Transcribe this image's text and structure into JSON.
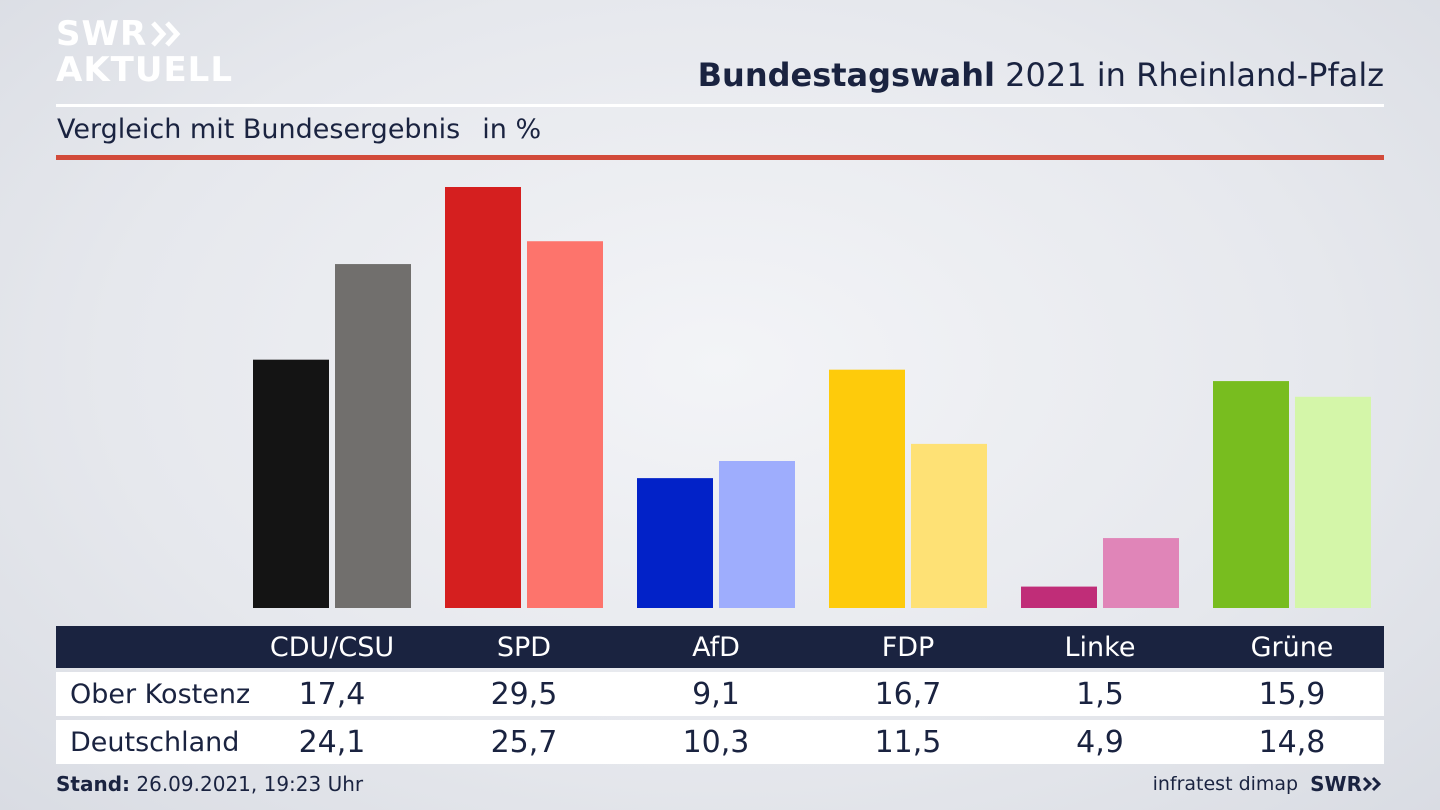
{
  "logo": {
    "line1": "SWR",
    "line2": "AKTUELL"
  },
  "header": {
    "title_bold": "Bundestagswahl",
    "title_rest": "2021 in Rheinland-Pfalz"
  },
  "subtitle": {
    "text": "Vergleich mit Bundesergebnis",
    "unit": "in %"
  },
  "table": {
    "headers": [
      "CDU/CSU",
      "SPD",
      "AfD",
      "FDP",
      "Linke",
      "Grüne"
    ],
    "rows": [
      {
        "label": "Ober Kostenz",
        "values": [
          "17,4",
          "29,5",
          "9,1",
          "16,7",
          "1,5",
          "15,9"
        ]
      },
      {
        "label": "Deutschland",
        "values": [
          "24,1",
          "25,7",
          "10,3",
          "11,5",
          "4,9",
          "14,8"
        ]
      }
    ]
  },
  "footer": {
    "stand_label": "Stand:",
    "stand_value": "26.09.2021, 19:23 Uhr",
    "source": "infratest dimap",
    "brand": "SWR"
  },
  "chart_data": {
    "type": "bar",
    "categories": [
      "CDU/CSU",
      "SPD",
      "AfD",
      "FDP",
      "Linke",
      "Grüne"
    ],
    "series": [
      {
        "name": "Ober Kostenz",
        "values": [
          17.4,
          29.5,
          9.1,
          16.7,
          1.5,
          15.9
        ],
        "colors": [
          "#141414",
          "#d51f1f",
          "#0222c8",
          "#fecb0b",
          "#c02d78",
          "#78bd1f"
        ]
      },
      {
        "name": "Deutschland",
        "values": [
          24.1,
          25.7,
          10.3,
          11.5,
          4.9,
          14.8
        ],
        "colors": [
          "#716f6d",
          "#fd746c",
          "#9eadfd",
          "#fee175",
          "#e085b8",
          "#d4f6a9"
        ]
      }
    ],
    "ylim": [
      0,
      29.5
    ],
    "grid": false,
    "legend": "none"
  }
}
